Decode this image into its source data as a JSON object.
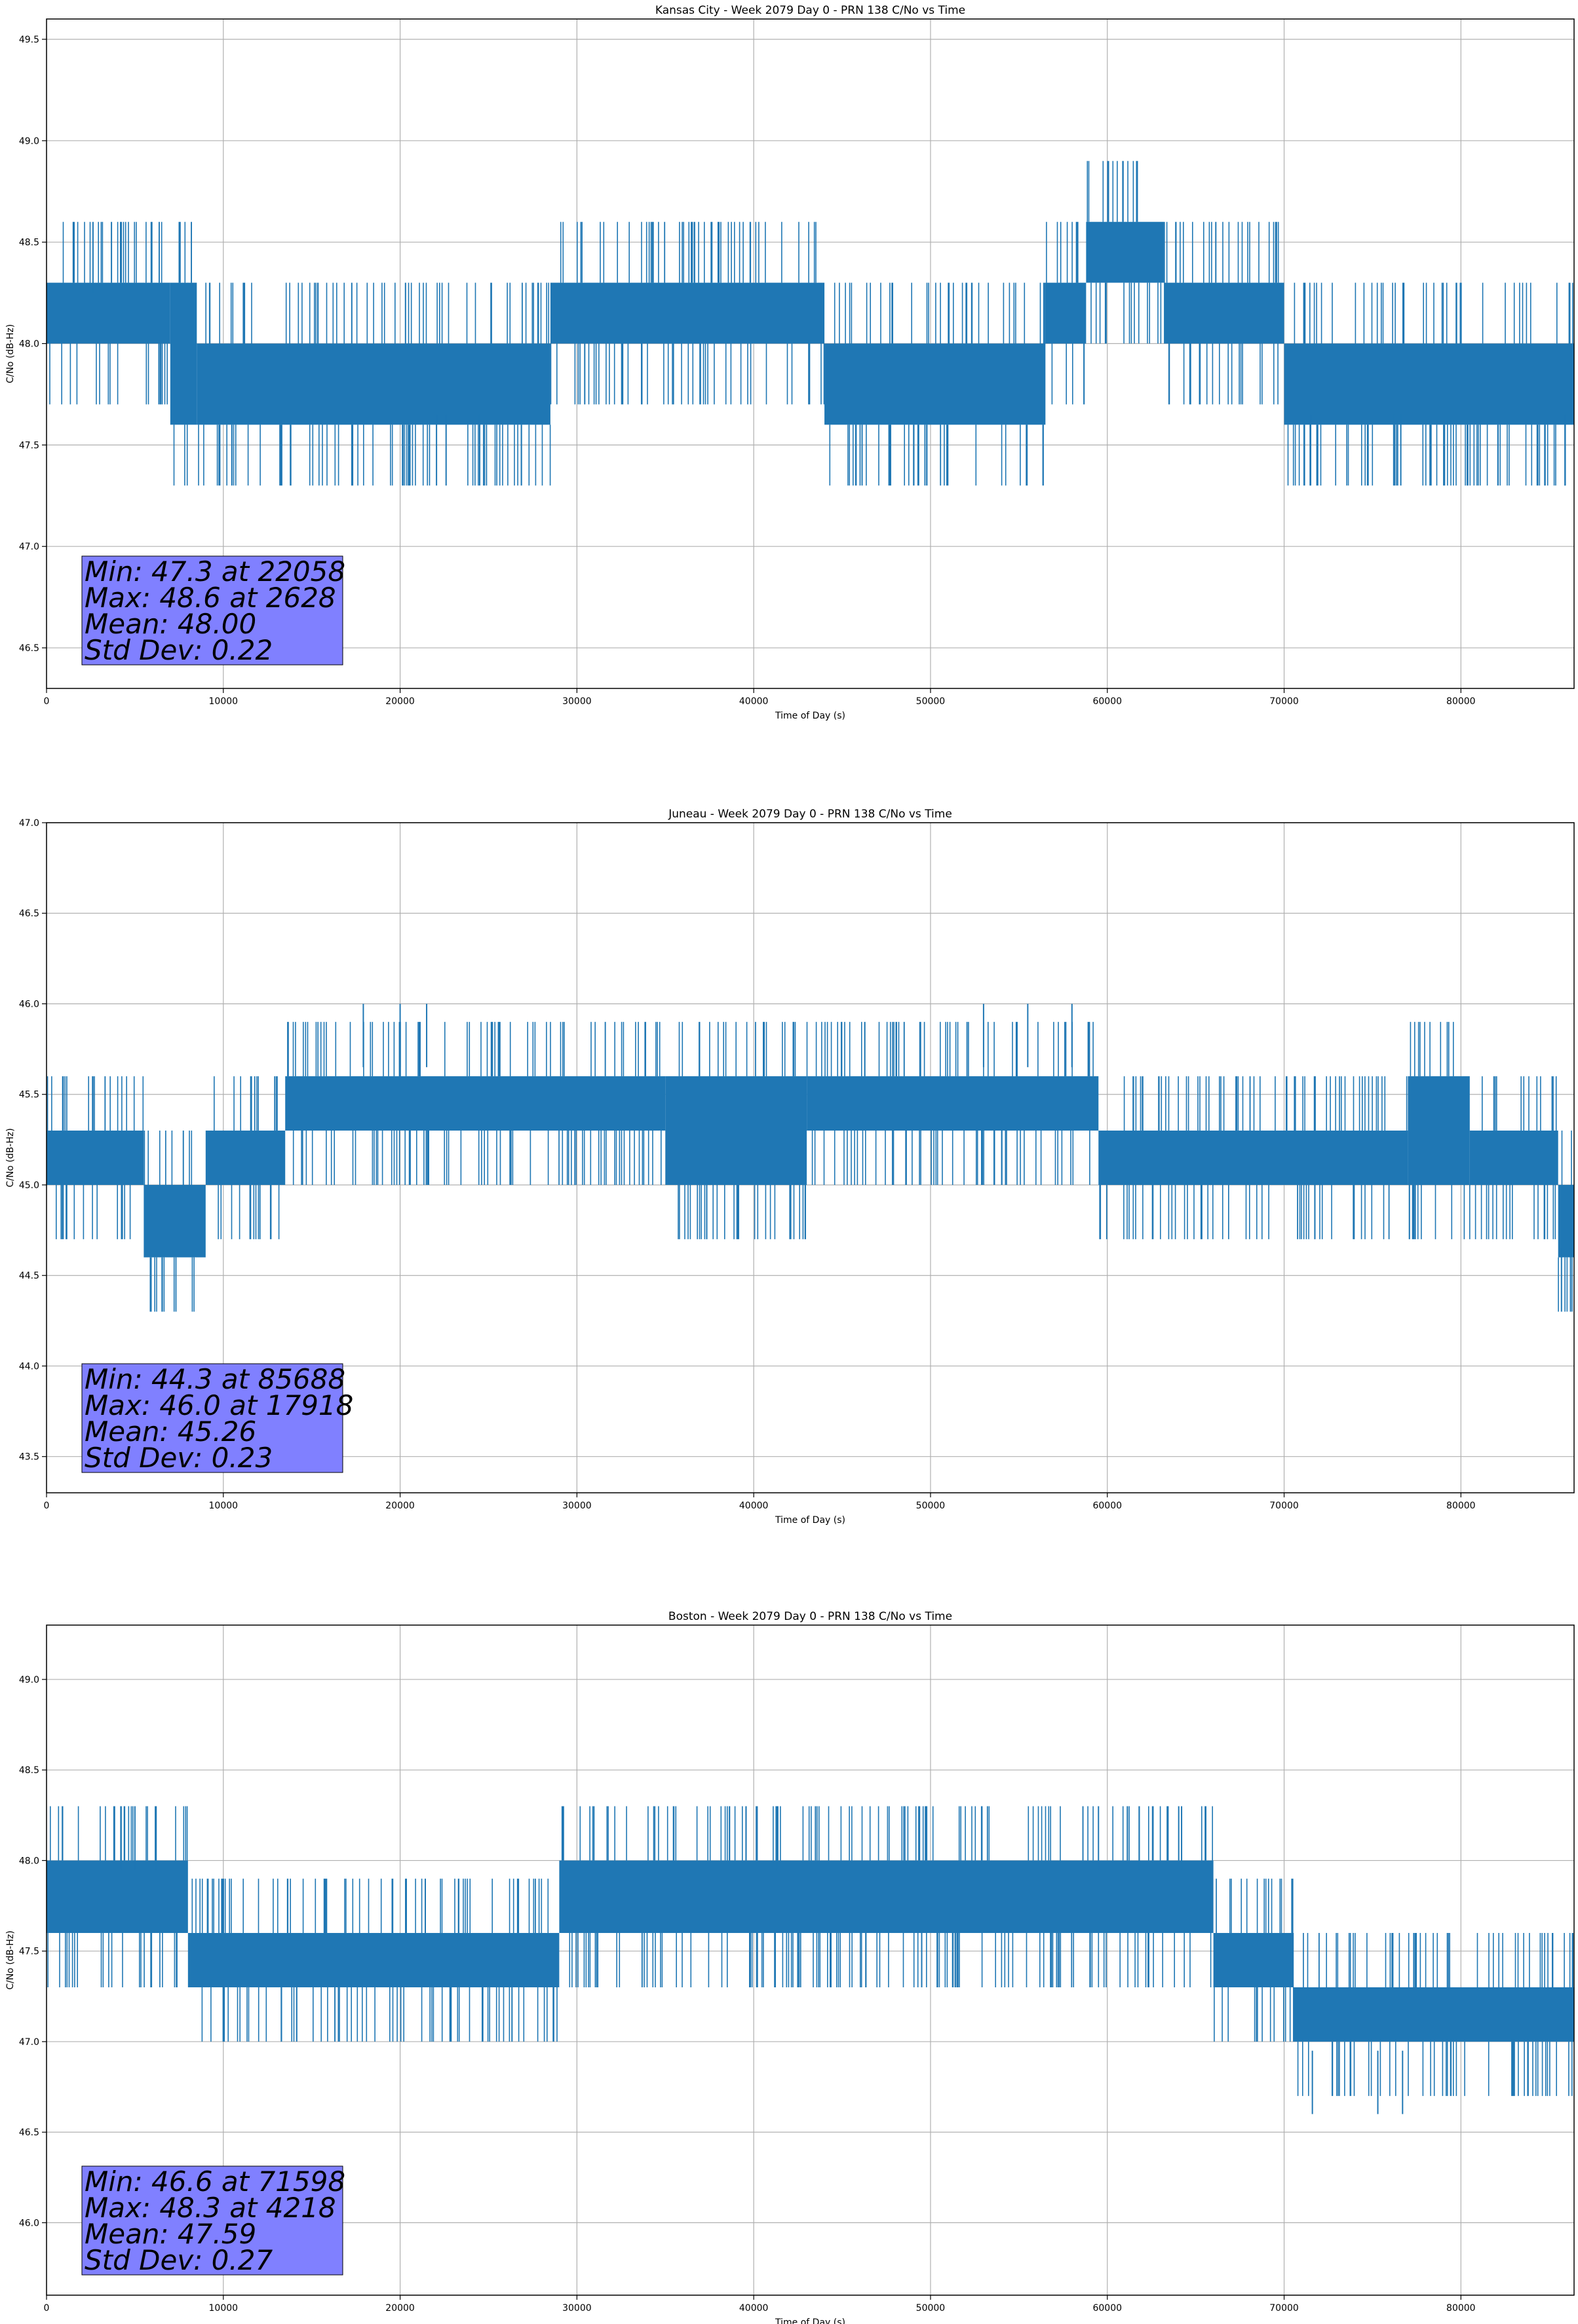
{
  "figure": {
    "stats_box_color": "#8080ff",
    "series_color": "#1f77b4",
    "grid_color": "#b0b0b0"
  },
  "chart_data": [
    {
      "type": "line",
      "title": "Kansas City - Week 2079 Day 0 - PRN 138 C/No vs Time",
      "xlabel": "Time of Day (s)",
      "ylabel": "C/No (dB-Hz)",
      "xlim": [
        0,
        86400
      ],
      "ylim": [
        46.3,
        49.6
      ],
      "xticks": [
        0,
        10000,
        20000,
        30000,
        40000,
        50000,
        60000,
        70000,
        80000
      ],
      "xtick_labels": [
        "0",
        "10000",
        "20000",
        "30000",
        "40000",
        "50000",
        "60000",
        "70000",
        "80000"
      ],
      "yticks": [
        46.5,
        47.0,
        47.5,
        48.0,
        48.5,
        49.0,
        49.5
      ],
      "ytick_labels": [
        "46.5",
        "47.0",
        "47.5",
        "48.0",
        "48.5",
        "49.0",
        "49.5"
      ],
      "grid": true,
      "series_bands": [
        {
          "x": [
            0,
            7000
          ],
          "low": 48.0,
          "high": 48.3
        },
        {
          "x": [
            7000,
            8500
          ],
          "low": 47.6,
          "high": 48.3
        },
        {
          "x": [
            8500,
            28500
          ],
          "low": 47.6,
          "high": 48.0
        },
        {
          "x": [
            28500,
            44000
          ],
          "low": 48.0,
          "high": 48.3
        },
        {
          "x": [
            44000,
            56500
          ],
          "low": 47.6,
          "high": 48.0
        },
        {
          "x": [
            56500,
            58800
          ],
          "low": 48.0,
          "high": 48.3
        },
        {
          "x": [
            58800,
            63200
          ],
          "low": 48.3,
          "high": 48.6
        },
        {
          "x": [
            63200,
            70000
          ],
          "low": 48.0,
          "high": 48.3
        },
        {
          "x": [
            70000,
            86400
          ],
          "low": 47.6,
          "high": 48.0
        }
      ],
      "min_points": [
        [
          22058,
          47.3
        ],
        [
          22600,
          47.3
        ],
        [
          24500,
          47.3
        ],
        [
          71500,
          47.3
        ],
        [
          76200,
          47.3
        ],
        [
          76600,
          47.3
        ],
        [
          85900,
          47.3
        ]
      ],
      "max_points": [
        [
          2628,
          48.6
        ]
      ],
      "stats": {
        "min": "Min: 47.3 at 22058",
        "max": "Max: 48.6 at 2628",
        "mean": "Mean: 48.00",
        "std": "Std Dev: 0.22"
      }
    },
    {
      "type": "line",
      "title": "Juneau - Week 2079 Day 0 - PRN 138 C/No vs Time",
      "xlabel": "Time of Day (s)",
      "ylabel": "C/No (dB-Hz)",
      "xlim": [
        0,
        86400
      ],
      "ylim": [
        43.3,
        47.0
      ],
      "xticks": [
        0,
        10000,
        20000,
        30000,
        40000,
        50000,
        60000,
        70000,
        80000
      ],
      "xtick_labels": [
        "0",
        "10000",
        "20000",
        "30000",
        "40000",
        "50000",
        "60000",
        "70000",
        "80000"
      ],
      "yticks": [
        43.5,
        44.0,
        44.5,
        45.0,
        45.5,
        46.0,
        46.5,
        47.0
      ],
      "ytick_labels": [
        "43.5",
        "44.0",
        "44.5",
        "45.0",
        "45.5",
        "46.0",
        "46.5",
        "47.0"
      ],
      "grid": true,
      "series_bands": [
        {
          "x": [
            0,
            5500
          ],
          "low": 45.0,
          "high": 45.3
        },
        {
          "x": [
            5500,
            9000
          ],
          "low": 44.6,
          "high": 45.0
        },
        {
          "x": [
            9000,
            13500
          ],
          "low": 45.0,
          "high": 45.3
        },
        {
          "x": [
            13500,
            35000
          ],
          "low": 45.3,
          "high": 45.6
        },
        {
          "x": [
            35000,
            43000
          ],
          "low": 45.0,
          "high": 45.6
        },
        {
          "x": [
            43000,
            59500
          ],
          "low": 45.3,
          "high": 45.6
        },
        {
          "x": [
            59500,
            77000
          ],
          "low": 45.0,
          "high": 45.3
        },
        {
          "x": [
            77000,
            80500
          ],
          "low": 45.0,
          "high": 45.6
        },
        {
          "x": [
            80500,
            85500
          ],
          "low": 45.0,
          "high": 45.3
        },
        {
          "x": [
            85500,
            86400
          ],
          "low": 44.6,
          "high": 45.0
        }
      ],
      "min_points": [
        [
          85688,
          44.3
        ],
        [
          86200,
          44.3
        ]
      ],
      "max_points": [
        [
          17918,
          46.0
        ],
        [
          20000,
          46.0
        ],
        [
          21500,
          46.0
        ],
        [
          53000,
          46.0
        ],
        [
          55500,
          46.0
        ],
        [
          58000,
          46.0
        ]
      ],
      "stats": {
        "min": "Min: 44.3 at 85688",
        "max": "Max: 46.0 at 17918",
        "mean": "Mean: 45.26",
        "std": "Std Dev: 0.23"
      }
    },
    {
      "type": "line",
      "title": "Boston - Week 2079 Day 0 - PRN 138 C/No vs Time",
      "xlabel": "Time of Day (s)",
      "ylabel": "C/No (dB-Hz)",
      "xlim": [
        0,
        86400
      ],
      "ylim": [
        45.6,
        49.3
      ],
      "xticks": [
        0,
        10000,
        20000,
        30000,
        40000,
        50000,
        60000,
        70000,
        80000
      ],
      "xtick_labels": [
        "0",
        "10000",
        "20000",
        "30000",
        "40000",
        "50000",
        "60000",
        "70000",
        "80000"
      ],
      "yticks": [
        46.0,
        46.5,
        47.0,
        47.5,
        48.0,
        48.5,
        49.0
      ],
      "ytick_labels": [
        "46.0",
        "46.5",
        "47.0",
        "47.5",
        "48.0",
        "48.5",
        "49.0"
      ],
      "grid": true,
      "series_bands": [
        {
          "x": [
            0,
            8000
          ],
          "low": 47.6,
          "high": 48.0
        },
        {
          "x": [
            8000,
            29000
          ],
          "low": 47.3,
          "high": 47.6
        },
        {
          "x": [
            29000,
            66000
          ],
          "low": 47.6,
          "high": 48.0
        },
        {
          "x": [
            66000,
            70500
          ],
          "low": 47.3,
          "high": 47.6
        },
        {
          "x": [
            70500,
            86400
          ],
          "low": 47.0,
          "high": 47.3
        }
      ],
      "min_points": [
        [
          71598,
          46.6
        ],
        [
          75300,
          46.6
        ],
        [
          76700,
          46.6
        ]
      ],
      "max_points": [
        [
          4218,
          48.3
        ],
        [
          5000,
          48.3
        ],
        [
          6200,
          48.3
        ],
        [
          41300,
          48.3
        ],
        [
          59500,
          48.3
        ],
        [
          61800,
          48.3
        ],
        [
          64200,
          48.3
        ]
      ],
      "stats": {
        "min": "Min: 46.6 at 71598",
        "max": "Max: 48.3 at 4218",
        "mean": "Mean: 47.59",
        "std": "Std Dev: 0.27"
      }
    }
  ]
}
